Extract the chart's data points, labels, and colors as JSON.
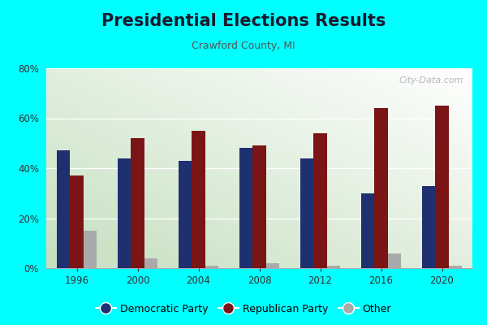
{
  "title": "Presidential Elections Results",
  "subtitle": "Crawford County, MI",
  "years": [
    1996,
    2000,
    2004,
    2008,
    2012,
    2016,
    2020
  ],
  "democratic": [
    47,
    44,
    43,
    48,
    44,
    30,
    33
  ],
  "republican": [
    37,
    52,
    55,
    49,
    54,
    64,
    65
  ],
  "other": [
    15,
    4,
    1,
    2,
    1,
    6,
    1
  ],
  "dem_color": "#1F3070",
  "rep_color": "#7B1515",
  "other_color": "#AAAAAA",
  "outer_bg": "#00FFFF",
  "plot_bg_bottom_left": "#C5DFC0",
  "plot_bg_top_right": "#FFFFFF",
  "ylim": [
    0,
    80
  ],
  "yticks": [
    0,
    20,
    40,
    60,
    80
  ],
  "ytick_labels": [
    "0%",
    "20%",
    "40%",
    "60%",
    "80%"
  ],
  "bar_width": 0.22,
  "title_fontsize": 15,
  "subtitle_fontsize": 9,
  "legend_fontsize": 9,
  "tick_fontsize": 8.5
}
